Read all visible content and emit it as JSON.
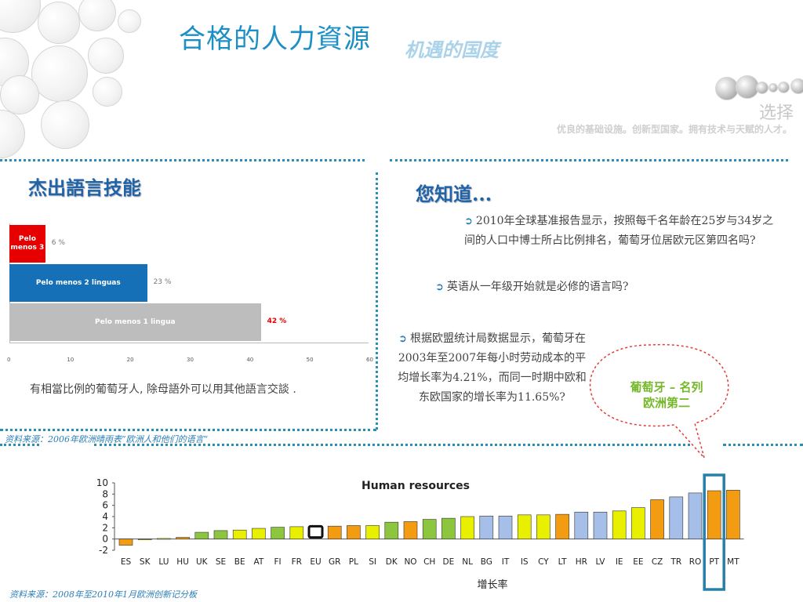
{
  "header": {
    "title": "合格的人力資源",
    "subtitle": "机遇的国度",
    "tagline_title": "选择",
    "tagline_text": "优良的基础设施。创新型国家。拥有技术与天赋的人才。"
  },
  "left": {
    "heading": "杰出語言技能",
    "caption": "有相當比例的葡萄牙人, 除母語外可以用其他語言交談 ."
  },
  "right": {
    "heading": "您知道...",
    "bullets": [
      "2010年全球基准报告显示，按照每千名年龄在25岁与34岁之间的人口中博士所占比例排名，葡萄牙位居欧元区第四名吗?",
      "英语从一年级开始就是必修的语言吗?",
      "根据欧盟统计局数据显示，葡萄牙在2003年至2007年每小时劳动成本的平均增长率为4.21%，而同一时期中欧和东欧国家的增长率为11.65%?"
    ],
    "callout_line1": "葡萄牙 – 名列",
    "callout_line2": "欧洲第二"
  },
  "sources": {
    "source1": "资料来源：2006年欧洲晴雨表”欧洲人和他们的语言“",
    "source2": "资料来源：2008年至2010年1月欧洲创新记分板"
  },
  "colors": {
    "accent_blue": "#1c8fc4",
    "red": "#e60000",
    "blue_bar": "#1570b8",
    "gray_bar": "#bdbdbd",
    "orange": "#f39c12",
    "yellow": "#e8f000",
    "green": "#8cc63f",
    "lightblue": "#a6bfe8",
    "highlight_box": "#2a7fa8"
  },
  "chart_data": [
    {
      "type": "bar",
      "orientation": "horizontal",
      "categories": [
        "Pelo menos 3",
        "Pelo menos 2 linguas",
        "Pelo menos 1 lingua"
      ],
      "values": [
        6,
        23,
        42
      ],
      "value_labels": [
        "6 %",
        "23 %",
        "42 %"
      ],
      "xlim": [
        0,
        60
      ],
      "xticks": [
        "0",
        "10",
        "20",
        "30",
        "40",
        "50",
        "60"
      ],
      "colors": [
        "#e60000",
        "#1570b8",
        "#bdbdbd"
      ]
    },
    {
      "type": "bar",
      "title": "Human resources",
      "xlabel": "增长率",
      "ylim": [
        -2,
        10
      ],
      "yticks": [
        "-2",
        "0",
        "2",
        "4",
        "6",
        "8",
        "10"
      ],
      "categories": [
        "ES",
        "SK",
        "LU",
        "HU",
        "UK",
        "SE",
        "BE",
        "AT",
        "FI",
        "FR",
        "EU",
        "GR",
        "PL",
        "SI",
        "DK",
        "NO",
        "CH",
        "DE",
        "NL",
        "BG",
        "IT",
        "IS",
        "CY",
        "LT",
        "HR",
        "LV",
        "IE",
        "EE",
        "CZ",
        "TR",
        "RO",
        "PT",
        "MT"
      ],
      "values": [
        -1.1,
        0,
        0.1,
        0.3,
        1.2,
        1.5,
        1.6,
        1.9,
        2.1,
        2.2,
        2.0,
        2.3,
        2.4,
        2.4,
        3.0,
        3.1,
        3.5,
        3.7,
        4.0,
        4.1,
        4.1,
        4.3,
        4.3,
        4.4,
        4.8,
        4.8,
        5.0,
        5.6,
        7.0,
        7.5,
        8.2,
        8.6,
        8.7
      ],
      "bar_colors": [
        "orange",
        "yellow",
        "yellow",
        "orange",
        "green",
        "green",
        "yellow",
        "yellow",
        "green",
        "yellow",
        "eu",
        "orange",
        "orange",
        "yellow",
        "green",
        "orange",
        "green",
        "green",
        "yellow",
        "lightblue",
        "lightblue",
        "yellow",
        "yellow",
        "orange",
        "lightblue",
        "lightblue",
        "yellow",
        "yellow",
        "orange",
        "lightblue",
        "lightblue",
        "orange",
        "orange"
      ],
      "highlight": "PT"
    }
  ]
}
